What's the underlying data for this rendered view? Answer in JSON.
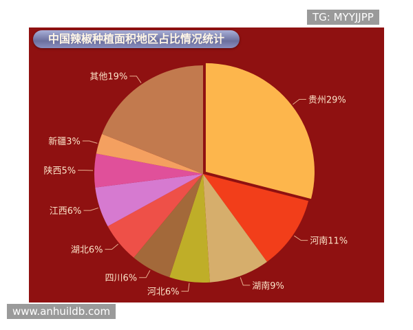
{
  "watermarks": {
    "top_right": "TG: MYYJJPP",
    "bottom_left": "www.anhuildb.com"
  },
  "colors": {
    "background": "#8f1111",
    "label_text": "#fbe3c8"
  },
  "chart_data": {
    "type": "pie",
    "title": "中国辣椒种植面积地区占比情况统计",
    "start": "12 o'clock, clockwise",
    "exploded": "贵州",
    "slices": [
      {
        "name": "贵州",
        "value": 29,
        "label": "贵州29%",
        "color": "#fdb64c"
      },
      {
        "name": "河南",
        "value": 11,
        "label": "河南11%",
        "color": "#f23e1a"
      },
      {
        "name": "湖南",
        "value": 9,
        "label": "湖南9%",
        "color": "#d6ae6c"
      },
      {
        "name": "河北",
        "value": 6,
        "label": "河北6%",
        "color": "#bfae28"
      },
      {
        "name": "四川",
        "value": 6,
        "label": "四川6%",
        "color": "#a3693a"
      },
      {
        "name": "湖北",
        "value": 6,
        "label": "湖北6%",
        "color": "#ee5048"
      },
      {
        "name": "江西",
        "value": 6,
        "label": "江西6%",
        "color": "#d67ad0"
      },
      {
        "name": "陕西",
        "value": 5,
        "label": "陕西5%",
        "color": "#e0509a"
      },
      {
        "name": "新疆",
        "value": 3,
        "label": "新疆3%",
        "color": "#f4a060"
      },
      {
        "name": "其他",
        "value": 19,
        "label": "其他19%",
        "color": "#c27a4e"
      }
    ]
  }
}
